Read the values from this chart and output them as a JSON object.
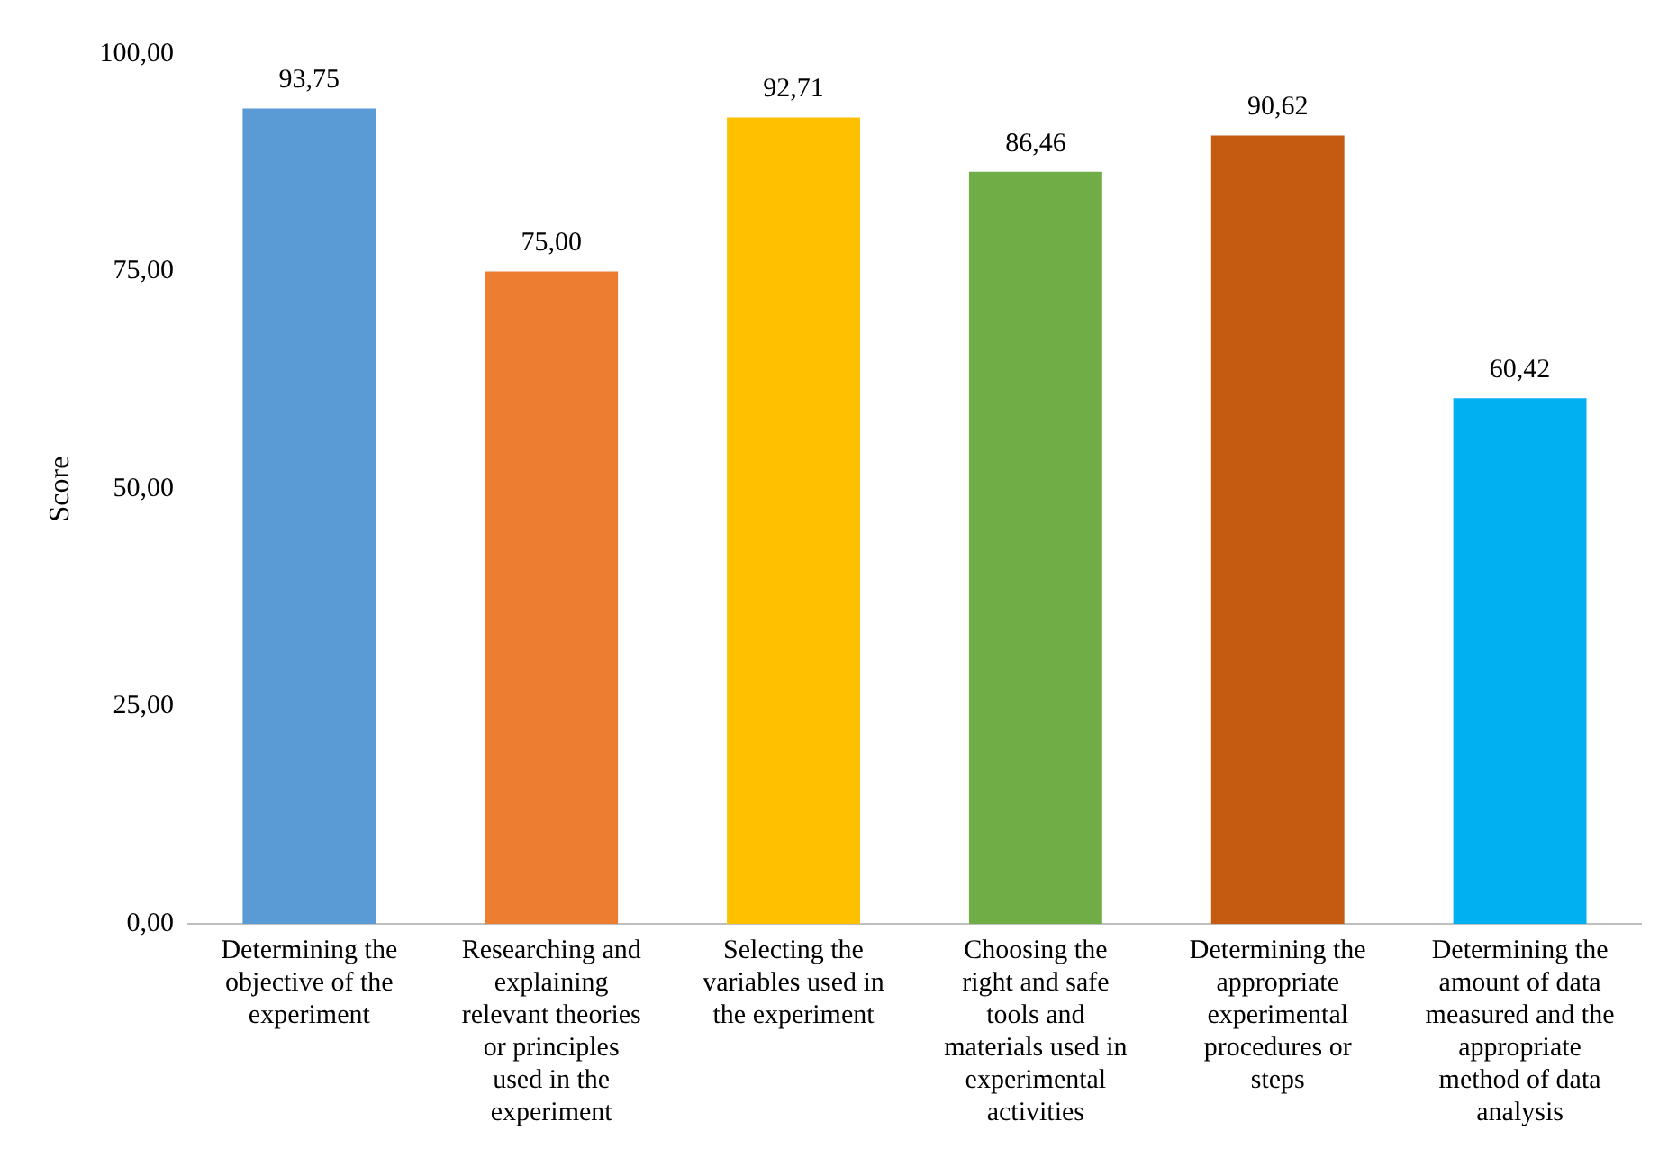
{
  "chart_data": {
    "type": "bar",
    "ylabel": "Score",
    "categories": [
      "Determining the objective of the experiment",
      "Researching and explaining relevant theories or principles used in the experiment",
      "Selecting the variables used in the experiment",
      "Choosing the right and safe tools and materials used in experimental activities",
      "Determining the appropriate experimental procedures or steps",
      "Determining the amount of data measured and the appropriate method of data analysis"
    ],
    "values": [
      93.75,
      75.0,
      92.71,
      86.46,
      90.62,
      60.42
    ],
    "colors": [
      "#5b9bd5",
      "#ed7d31",
      "#ffc000",
      "#70ad47",
      "#c55a11",
      "#00b0f0"
    ],
    "value_labels": [
      "93,75",
      "75,00",
      "92,71",
      "86,46",
      "90,62",
      "60,42"
    ],
    "ylim": [
      0,
      100
    ],
    "yticks": [
      {
        "value": 0,
        "label": "0,00"
      },
      {
        "value": 25,
        "label": "25,00"
      },
      {
        "value": 50,
        "label": "50,00"
      },
      {
        "value": 75,
        "label": "75,00"
      },
      {
        "value": 100,
        "label": "100,00"
      }
    ],
    "grid": false,
    "legend": false
  }
}
